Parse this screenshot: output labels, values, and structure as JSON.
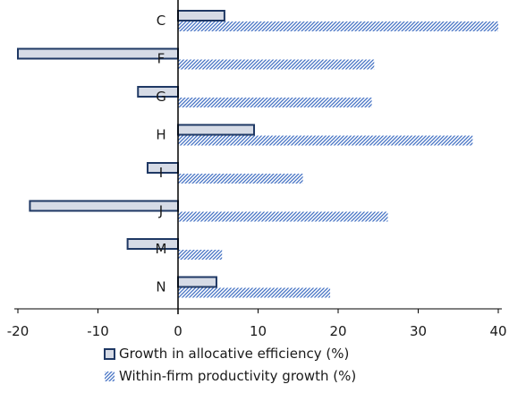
{
  "chart_data": {
    "type": "bar",
    "orientation": "horizontal",
    "categories": [
      "C",
      "F",
      "G",
      "H",
      "I",
      "J",
      "M",
      "N"
    ],
    "series": [
      {
        "name": "Growth in allocative efficiency (%)",
        "values": [
          5.8,
          -20.0,
          -5.0,
          9.5,
          -3.8,
          -18.5,
          -6.3,
          4.8
        ]
      },
      {
        "name": "Within-firm productivity growth (%)",
        "values": [
          40.0,
          24.5,
          24.2,
          36.8,
          15.6,
          26.2,
          5.5,
          19.0
        ]
      }
    ],
    "xlim": [
      -20,
      40
    ],
    "xticks": [
      "-20",
      "-10",
      "0",
      "10",
      "20",
      "30",
      "40"
    ],
    "title": "",
    "xlabel": "",
    "ylabel": "",
    "grid": false,
    "legend_position": "bottom",
    "colors": {
      "allocative_fill": "#d6dbe6",
      "allocative_stroke": "#1f3864",
      "within_hatch": "#4472c4",
      "axis": "#000000"
    }
  }
}
